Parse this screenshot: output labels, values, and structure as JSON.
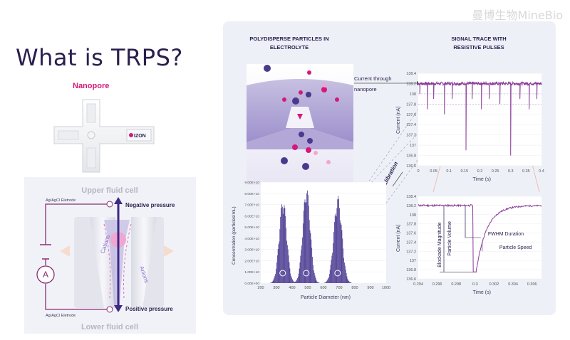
{
  "watermark": "曼博生物MineBio",
  "title": "What is TRPS?",
  "nanopore": {
    "label": "Nanopore",
    "chip_brand": "IZON"
  },
  "fluid_cell": {
    "upper": "Upper fluid cell",
    "lower": "Lower fluid cell",
    "electrode_top": "Ag/AgCl Eletrode",
    "electrode_bottom": "Ag/AgCl Eletrode",
    "negative_pressure": "Negative pressure",
    "positive_pressure": "Positive pressure",
    "cations": "Cations",
    "anions": "Anions",
    "ammeter": "A"
  },
  "panel": {
    "polydisperse_title_1": "POLYDISPERSE PARTICLES IN",
    "polydisperse_title_2": "ELECTROLYTE",
    "signal_title_1": "SIGNAL TRACE WITH",
    "signal_title_2": "RESISTIVE PULSES",
    "current_through_1": "Current through",
    "current_through_2": "nanopore",
    "calibration": "Calibration"
  },
  "trace_top": {
    "ylabel": "Current (nA)",
    "xlabel": "Time (s)",
    "yticks": [
      "138.4",
      "138.2",
      "138",
      "137.8",
      "137.6",
      "137.4",
      "137.2",
      "137",
      "136.8",
      "136.6"
    ],
    "xticks": [
      "0",
      "0.05",
      "0.1",
      "0.15",
      "0.2",
      "0.25",
      "0.3",
      "0.35",
      "0.4"
    ],
    "baseline": 138.2,
    "pulses": [
      {
        "t": 0.005,
        "depth": 138.0
      },
      {
        "t": 0.03,
        "depth": 137.7
      },
      {
        "t": 0.05,
        "depth": 137.9
      },
      {
        "t": 0.085,
        "depth": 137.6
      },
      {
        "t": 0.11,
        "depth": 137.9
      },
      {
        "t": 0.155,
        "depth": 136.9
      },
      {
        "t": 0.175,
        "depth": 137.9
      },
      {
        "t": 0.205,
        "depth": 137.7
      },
      {
        "t": 0.23,
        "depth": 137.9
      },
      {
        "t": 0.265,
        "depth": 137.8
      },
      {
        "t": 0.3,
        "depth": 136.8
      },
      {
        "t": 0.33,
        "depth": 137.9
      },
      {
        "t": 0.36,
        "depth": 137.7
      },
      {
        "t": 0.385,
        "depth": 137.9
      }
    ]
  },
  "trace_zoom": {
    "ylabel": "Current (nA)",
    "xlabel": "Time (s)",
    "yticks": [
      "138.4",
      "138.2",
      "138",
      "137.8",
      "137.6",
      "137.4",
      "137.2",
      "137",
      "136.8",
      "136.6"
    ],
    "xticks": [
      "0.294",
      "0.296",
      "0.298",
      "0.3",
      "0.302",
      "0.304",
      "0.306"
    ],
    "baseline": 138.2,
    "pulse_time": 0.3,
    "pulse_min": 136.75,
    "labels": {
      "blockade": "Blockade Magnitude",
      "volume": "Particle Volume",
      "fwhm": "FWHM Duration",
      "speed": "Particle Speed"
    }
  },
  "chart_data": {
    "type": "bar",
    "title": "",
    "xlabel": "Particle Diameter (nm)",
    "ylabel": "Concentration (particles/mL)",
    "xticks": [
      "200",
      "300",
      "400",
      "500",
      "600",
      "700",
      "800",
      "900",
      "1000"
    ],
    "yticks": [
      "0.00E+00",
      "1.00E+10",
      "2.00E+10",
      "3.00E+10",
      "4.00E+10",
      "5.00E+10",
      "6.00E+10",
      "7.00E+10",
      "8.00E+10",
      "9.00E+10"
    ],
    "ylim": [
      0,
      90000000000.0
    ],
    "xlim": [
      200,
      1000
    ],
    "peaks": [
      {
        "center": 340,
        "height": 76000000000.0,
        "width": 24
      },
      {
        "center": 490,
        "height": 86000000000.0,
        "width": 24
      },
      {
        "center": 690,
        "height": 78000000000.0,
        "width": 26
      }
    ]
  }
}
